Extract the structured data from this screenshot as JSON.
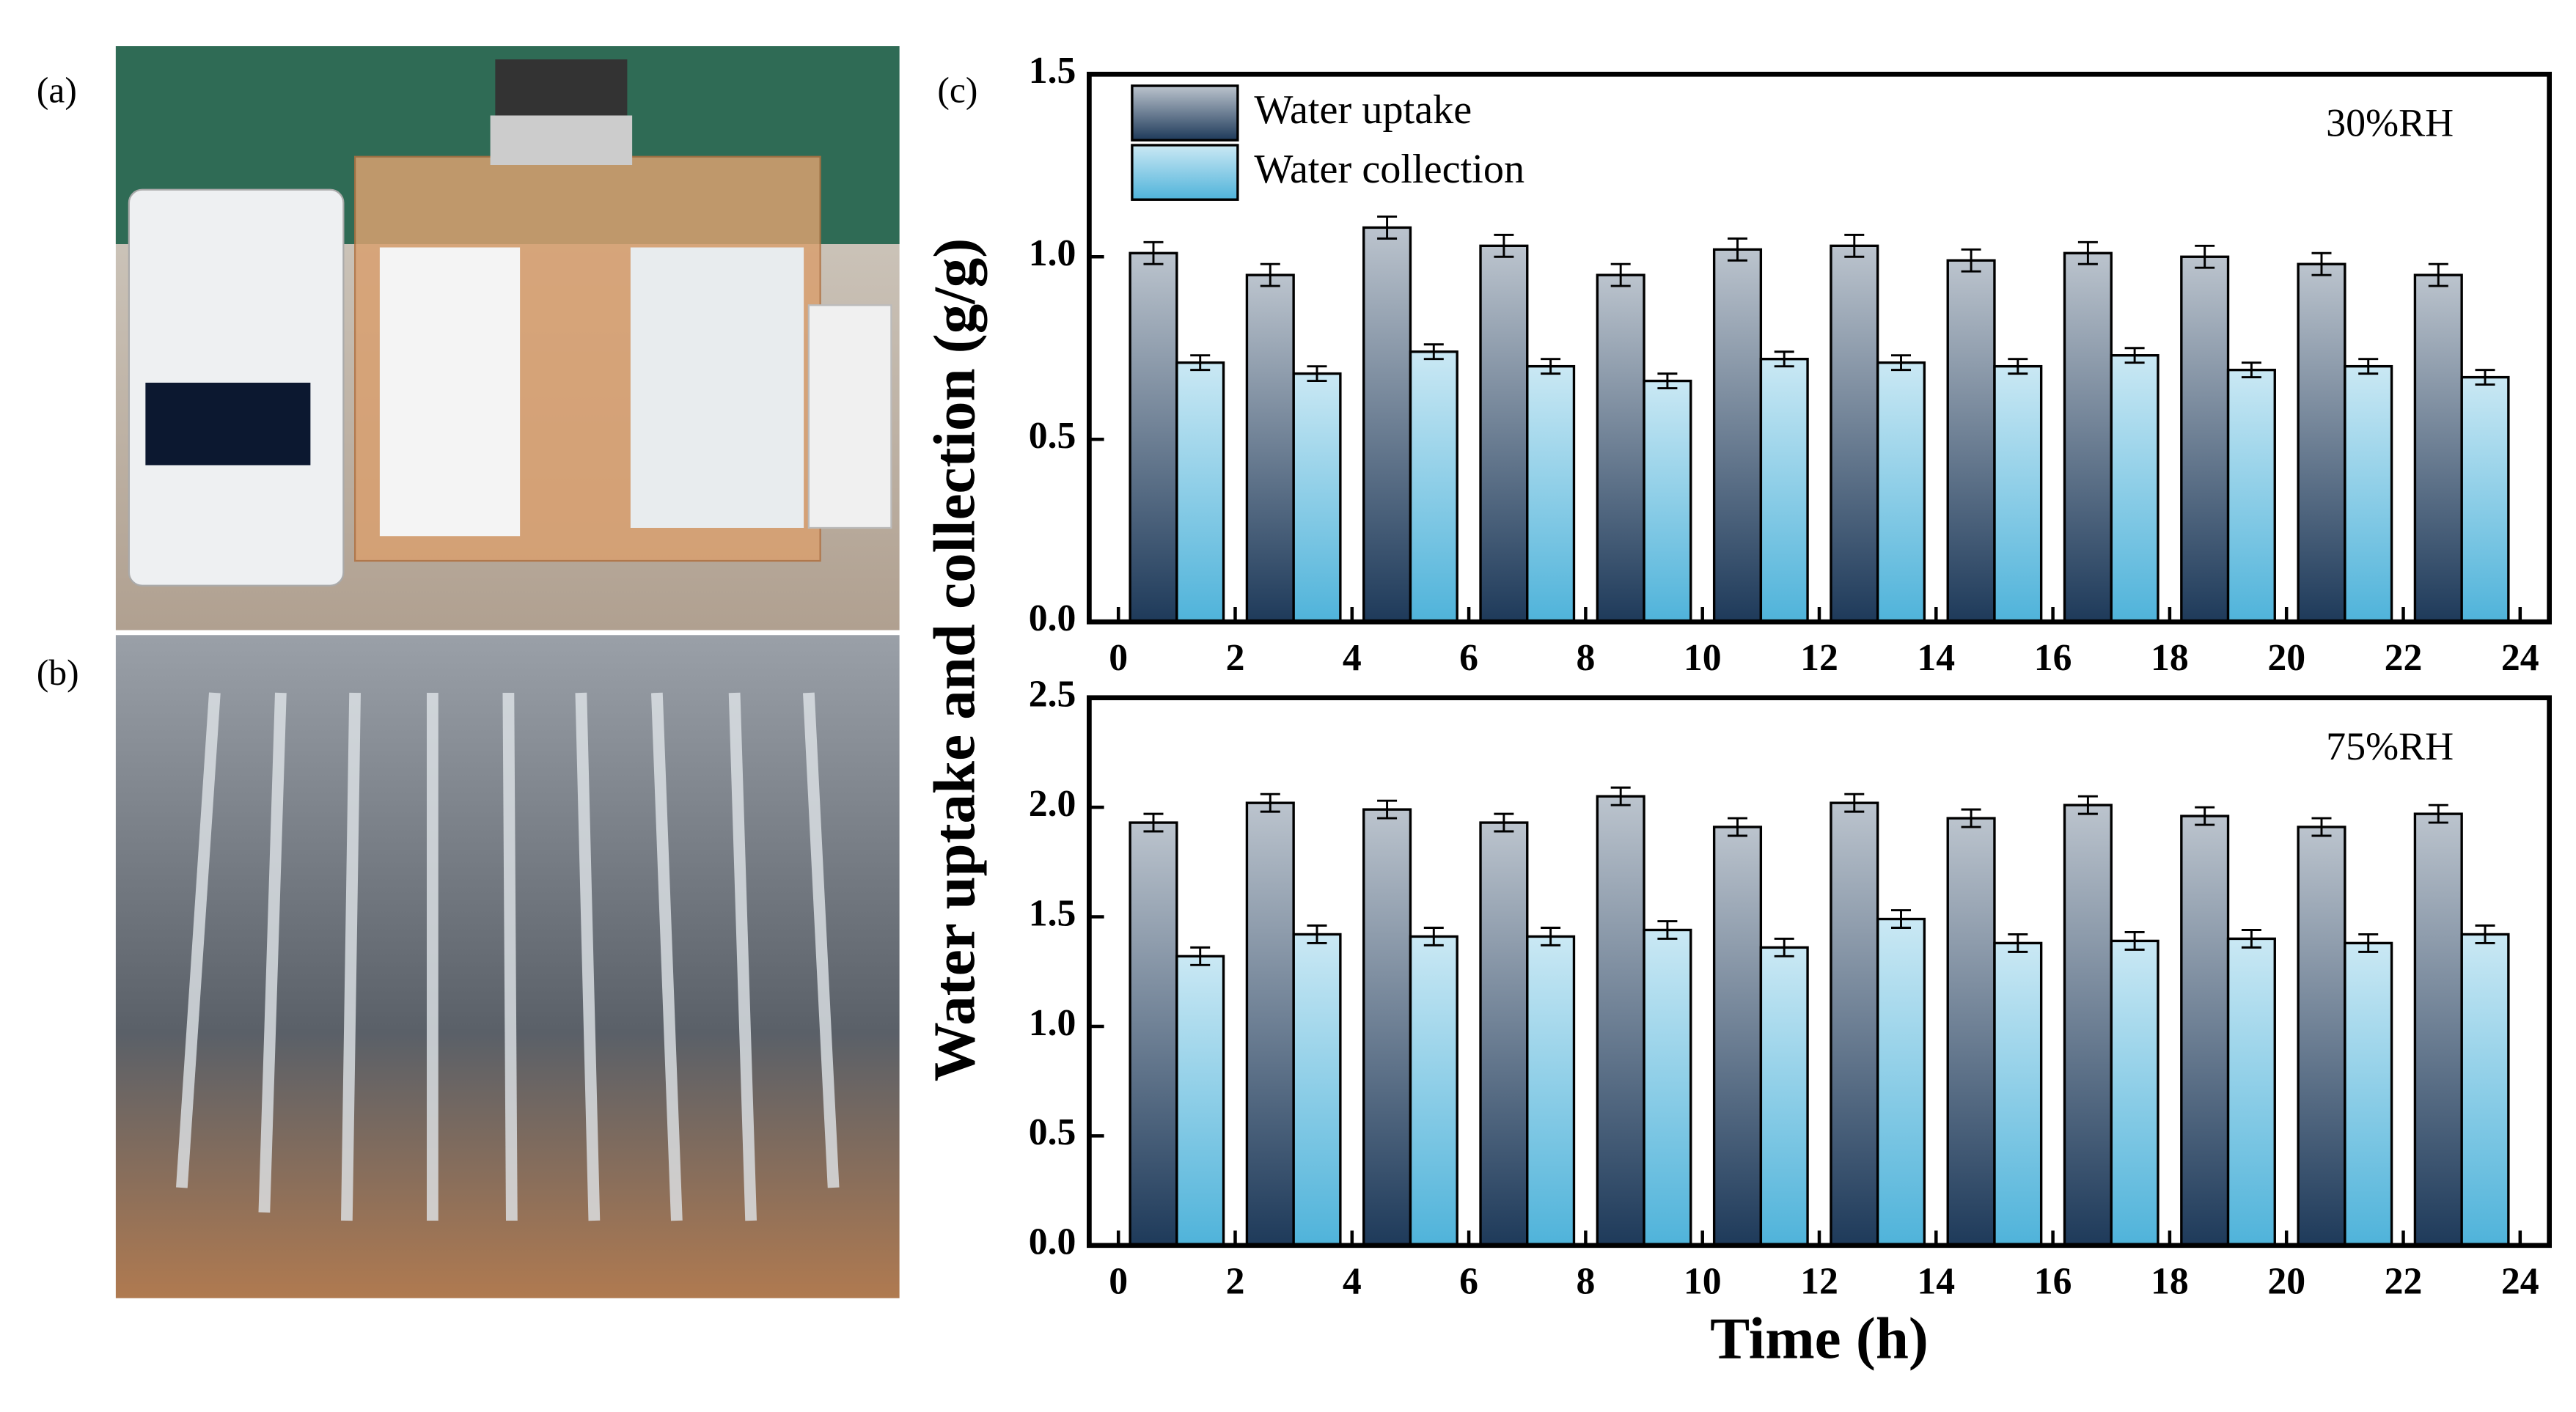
{
  "panel_labels": [
    "(a)",
    "(b)",
    "(c)"
  ],
  "chart_data": [
    {
      "type": "bar",
      "annotation": "30%RH",
      "ylabel": "Water uptake and collection (g/g)",
      "x": [
        1,
        3,
        5,
        7,
        9,
        11,
        13,
        15,
        17,
        19,
        21,
        23
      ],
      "series": [
        {
          "name": "Water uptake",
          "color": "#1e3a5a",
          "values": [
            1.01,
            0.95,
            1.08,
            1.03,
            0.95,
            1.02,
            1.03,
            0.99,
            1.01,
            1.0,
            0.98,
            0.95
          ],
          "errors": [
            0.03,
            0.03,
            0.03,
            0.03,
            0.03,
            0.03,
            0.03,
            0.03,
            0.03,
            0.03,
            0.03,
            0.03
          ]
        },
        {
          "name": "Water collection",
          "color": "#4fb3da",
          "values": [
            0.71,
            0.68,
            0.74,
            0.7,
            0.66,
            0.72,
            0.71,
            0.7,
            0.73,
            0.69,
            0.7,
            0.67
          ],
          "errors": [
            0.02,
            0.02,
            0.02,
            0.02,
            0.02,
            0.02,
            0.02,
            0.02,
            0.02,
            0.02,
            0.02,
            0.02
          ]
        }
      ],
      "xlim": [
        -0.5,
        24.5
      ],
      "xticks": [
        0,
        2,
        4,
        6,
        8,
        10,
        12,
        14,
        16,
        18,
        20,
        22,
        24
      ],
      "ylim": [
        0,
        1.5
      ],
      "yticks": [
        {
          "value": 0,
          "label": "0.0"
        },
        {
          "value": 0.5,
          "label": "0.5"
        },
        {
          "value": 1,
          "label": "1.0"
        },
        {
          "value": 1.5,
          "label": "1.5"
        }
      ],
      "legend": "upper left"
    },
    {
      "type": "bar",
      "annotation": "75%RH",
      "xlabel": "Time (h)",
      "x": [
        1,
        3,
        5,
        7,
        9,
        11,
        13,
        15,
        17,
        19,
        21,
        23
      ],
      "series": [
        {
          "name": "Water uptake",
          "color": "#1e3a5a",
          "values": [
            1.93,
            2.02,
            1.99,
            1.93,
            2.05,
            1.91,
            2.02,
            1.95,
            2.01,
            1.96,
            1.91,
            1.97
          ],
          "errors": [
            0.04,
            0.04,
            0.04,
            0.04,
            0.04,
            0.04,
            0.04,
            0.04,
            0.04,
            0.04,
            0.04,
            0.04
          ]
        },
        {
          "name": "Water collection",
          "color": "#4fb3da",
          "values": [
            1.32,
            1.42,
            1.41,
            1.41,
            1.44,
            1.36,
            1.49,
            1.38,
            1.39,
            1.4,
            1.38,
            1.42
          ],
          "errors": [
            0.04,
            0.04,
            0.04,
            0.04,
            0.04,
            0.04,
            0.04,
            0.04,
            0.04,
            0.04,
            0.04,
            0.04
          ]
        }
      ],
      "xlim": [
        -0.5,
        24.5
      ],
      "xticks": [
        0,
        2,
        4,
        6,
        8,
        10,
        12,
        14,
        16,
        18,
        20,
        22,
        24
      ],
      "ylim": [
        0,
        2.5
      ],
      "yticks": [
        {
          "value": 0,
          "label": "0.0"
        },
        {
          "value": 0.5,
          "label": "0.5"
        },
        {
          "value": 1,
          "label": "1.0"
        },
        {
          "value": 1.5,
          "label": "1.5"
        },
        {
          "value": 2,
          "label": "2.0"
        },
        {
          "value": 2.5,
          "label": "2.5"
        }
      ]
    }
  ]
}
